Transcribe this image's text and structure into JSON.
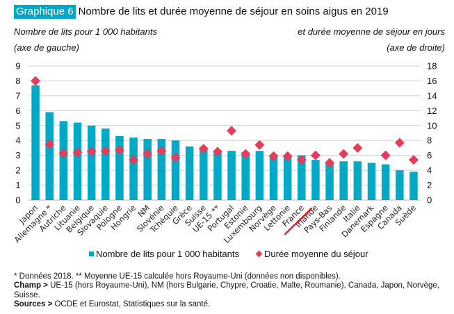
{
  "header": {
    "badge": "Graphique 6",
    "title": "Nombre de lits et durée moyenne de séjour en soins aigus en 2019",
    "left_axis_title": "Nombre de lits pour 1 000 habitants",
    "left_axis_note": "(axe de gauche)",
    "right_axis_title": "et durée moyenne de séjour en jours",
    "right_axis_note": "(axe de droite)"
  },
  "colors": {
    "badge": "#00a6c8",
    "bars": "#00a9c6",
    "diamonds": "#e63c5c",
    "grid": "#d9d9d9",
    "annotation": "#e8202a"
  },
  "chart_data": {
    "type": "bar",
    "title": "Nombre de lits et durée moyenne de séjour en soins aigus en 2019",
    "categories": [
      "Japon",
      "Allemagne *",
      "Autriche",
      "Lituanie",
      "Belgique",
      "Slovaquie",
      "Pologne",
      "Hongrie",
      "NM",
      "Slovénie",
      "Tchéquie",
      "Grèce",
      "Suisse",
      "UE-15 **",
      "Portugal",
      "Estonie",
      "Luxembourg",
      "Norvège",
      "Lettonie",
      "France",
      "Irlande",
      "Pays-Bas",
      "Finlande",
      "Italie",
      "Danemark",
      "Espagne",
      "Canada",
      "Suède"
    ],
    "series": [
      {
        "name": "Nombre de lits pour 1 000 habitants",
        "type": "bar",
        "axis": "left",
        "values": [
          7.7,
          5.9,
          5.3,
          5.2,
          5.0,
          4.8,
          4.3,
          4.2,
          4.1,
          4.1,
          4.0,
          3.6,
          3.4,
          3.3,
          3.3,
          3.2,
          3.3,
          3.0,
          2.9,
          3.0,
          2.7,
          2.5,
          2.6,
          2.6,
          2.5,
          2.4,
          2.0,
          1.9
        ]
      },
      {
        "name": "Durée moyenne du séjour",
        "type": "scatter",
        "marker": "diamond",
        "axis": "right",
        "values": [
          16.0,
          7.5,
          6.3,
          6.4,
          6.5,
          6.6,
          6.7,
          5.4,
          6.2,
          6.6,
          5.7,
          null,
          6.9,
          6.5,
          9.3,
          6.2,
          7.4,
          5.9,
          5.9,
          5.4,
          6.0,
          5.0,
          6.2,
          7.0,
          null,
          6.0,
          7.7,
          5.4
        ]
      }
    ],
    "left_axis": {
      "label": "Nombre de lits pour 1 000 habitants (axe de gauche)",
      "ylim": [
        0,
        9
      ],
      "ticks": [
        "0",
        "1",
        "2",
        "3",
        "4",
        "5",
        "6",
        "7",
        "8",
        "9"
      ]
    },
    "right_axis": {
      "label": "et durée moyenne de séjour en jours (axe de droite)",
      "ylim": [
        0,
        18
      ],
      "ticks": [
        "0",
        "2",
        "4",
        "6",
        "8",
        "10",
        "12",
        "14",
        "16",
        "18"
      ]
    },
    "grid": true,
    "legend": {
      "placement": "bottom",
      "entries": [
        "Nombre de lits pour 1 000 habitants",
        "Durée moyenne du séjour"
      ]
    },
    "annotations": [
      "red hand-drawn line under the label France"
    ]
  },
  "notes": {
    "line1": "* Données 2018. ** Moyenne UE-15 calculée hors Royaume-Uni (données non disponibles).",
    "champ_label": "Champ >",
    "champ_text": " UE-15 (hors Royaume-Uni), NM (hors Bulgarie, Chypre, Croatie, Malte, Roumanie), Canada, Japon, Norvège, Suisse.",
    "sources_label": "Sources >",
    "sources_text": " OCDE et Eurostat, Statistiques sur la santé."
  }
}
